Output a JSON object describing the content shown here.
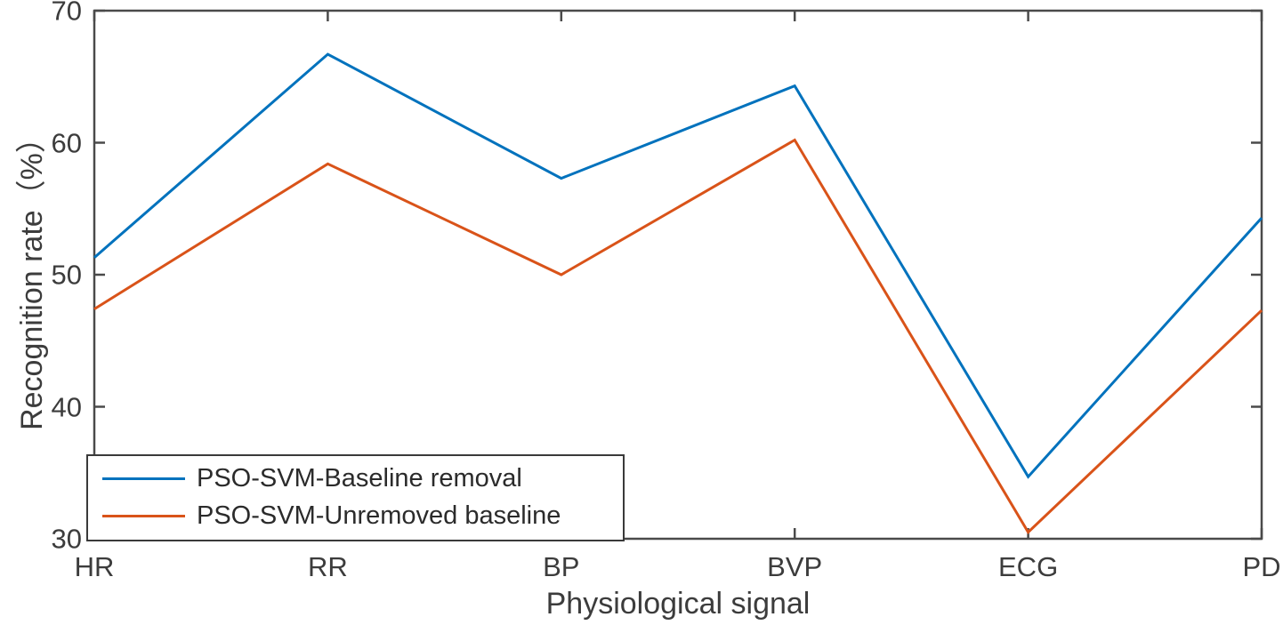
{
  "chart_data": {
    "type": "line",
    "title": "",
    "categories": [
      "HR",
      "RR",
      "BP",
      "BVP",
      "ECG",
      "PD"
    ],
    "series": [
      {
        "name": "PSO-SVM-Baseline removal",
        "color": "#0072BD",
        "values": [
          51.3,
          66.7,
          57.3,
          64.3,
          34.7,
          54.3
        ]
      },
      {
        "name": "PSO-SVM-Unremoved baseline",
        "color": "#D95319",
        "values": [
          47.4,
          58.4,
          50.0,
          60.2,
          30.5,
          47.3
        ]
      }
    ],
    "xlabel": "Physiological signal",
    "ylabel": "Recognition rate（%）",
    "ylim": [
      30,
      70
    ],
    "yticks": [
      70,
      60,
      50,
      40,
      30
    ],
    "ytick_labels": [
      "70",
      "60",
      "50",
      "40",
      "30"
    ],
    "grid": false,
    "legend_position": "southwest",
    "axis_color": "#4a4a4a",
    "text_color": "#3c3c3c",
    "line_width": 3
  }
}
